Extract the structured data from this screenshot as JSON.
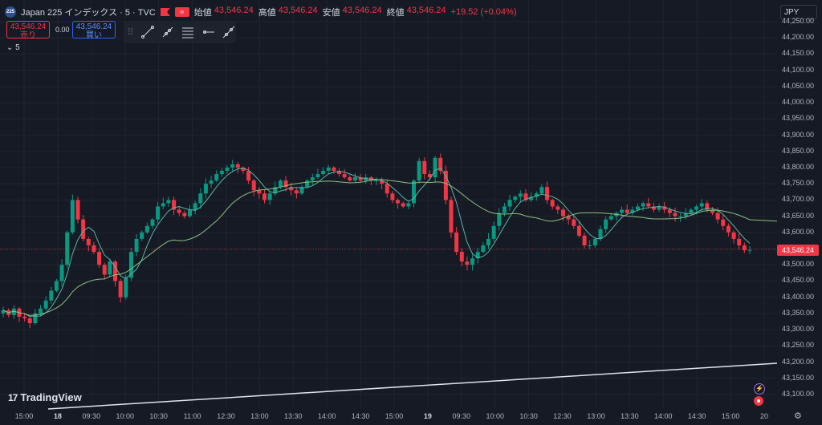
{
  "header": {
    "logo": "225",
    "symbol": "Japan 225 インデックス · 5 · TVC",
    "ohlc": [
      {
        "label": "始値",
        "value": "43,546.24"
      },
      {
        "label": "高値",
        "value": "43,546.24"
      },
      {
        "label": "安値",
        "value": "43,546.24"
      },
      {
        "label": "終値",
        "value": "43,546.24"
      }
    ],
    "change": "+19.52 (+0.04%)"
  },
  "trade": {
    "sell_price": "43,546.24",
    "sell_label": "売り",
    "spread": "0.00",
    "buy_price": "43,546.24",
    "buy_label": "買い"
  },
  "toolbar": {
    "icons": [
      "trend-line-icon",
      "ray-icon",
      "fib-icon",
      "horizontal-ray-icon",
      "extended-line-icon"
    ]
  },
  "indicators": {
    "collapse_label": "5"
  },
  "currency": "JPY",
  "current_price": "43,546.24",
  "brand": {
    "name": "TradingView",
    "mark": "17"
  },
  "colors": {
    "up": "#089981",
    "down": "#f23645",
    "ma_fast": "#5ab3a6",
    "ma_slow": "#8fbf7f",
    "grid": "#1f2430"
  },
  "chart_data": {
    "type": "candlestick",
    "y_ticks": [
      "44,250.00",
      "44,200.00",
      "44,150.00",
      "44,100.00",
      "44,050.00",
      "44,000.00",
      "43,950.00",
      "43,900.00",
      "43,850.00",
      "43,800.00",
      "43,750.00",
      "43,700.00",
      "43,650.00",
      "43,600.00",
      "43,550.00",
      "43,500.00",
      "43,450.00",
      "43,400.00",
      "43,350.00",
      "43,300.00",
      "43,250.00",
      "43,200.00",
      "43,150.00",
      "43,100.00"
    ],
    "x_ticks": [
      {
        "label": "15:00",
        "bold": false
      },
      {
        "label": "18",
        "bold": true
      },
      {
        "label": "09:30",
        "bold": false
      },
      {
        "label": "10:00",
        "bold": false
      },
      {
        "label": "10:30",
        "bold": false
      },
      {
        "label": "11:00",
        "bold": false
      },
      {
        "label": "12:30",
        "bold": false
      },
      {
        "label": "13:00",
        "bold": false
      },
      {
        "label": "13:30",
        "bold": false
      },
      {
        "label": "14:00",
        "bold": false
      },
      {
        "label": "14:30",
        "bold": false
      },
      {
        "label": "15:00",
        "bold": false
      },
      {
        "label": "19",
        "bold": true
      },
      {
        "label": "09:30",
        "bold": false
      },
      {
        "label": "10:00",
        "bold": false
      },
      {
        "label": "10:30",
        "bold": false
      },
      {
        "label": "12:30",
        "bold": false
      },
      {
        "label": "13:00",
        "bold": false
      },
      {
        "label": "13:30",
        "bold": false
      },
      {
        "label": "14:00",
        "bold": false
      },
      {
        "label": "14:30",
        "bold": false
      },
      {
        "label": "15:00",
        "bold": false
      },
      {
        "label": "20",
        "bold": false
      }
    ],
    "ylim": [
      43100,
      44250
    ],
    "closes": [
      43360,
      43345,
      43365,
      43340,
      43335,
      43320,
      43350,
      43365,
      43390,
      43420,
      43450,
      43500,
      43600,
      43700,
      43640,
      43580,
      43560,
      43540,
      43500,
      43470,
      43510,
      43450,
      43400,
      43460,
      43540,
      43580,
      43600,
      43620,
      43640,
      43680,
      43690,
      43700,
      43670,
      43660,
      43650,
      43670,
      43690,
      43720,
      43750,
      43760,
      43780,
      43790,
      43800,
      43810,
      43800,
      43790,
      43760,
      43730,
      43720,
      43700,
      43720,
      43740,
      43760,
      43740,
      43730,
      43720,
      43740,
      43760,
      43770,
      43780,
      43790,
      43800,
      43790,
      43780,
      43770,
      43760,
      43770,
      43760,
      43770,
      43760,
      43760,
      43750,
      43720,
      43700,
      43690,
      43680,
      43690,
      43760,
      43820,
      43780,
      43770,
      43830,
      43790,
      43700,
      43600,
      43540,
      43510,
      43500,
      43520,
      43540,
      43560,
      43580,
      43620,
      43660,
      43680,
      43700,
      43710,
      43720,
      43700,
      43710,
      43720,
      43740,
      43700,
      43680,
      43670,
      43650,
      43640,
      43620,
      43590,
      43560,
      43560,
      43580,
      43610,
      43640,
      43650,
      43660,
      43670,
      43660,
      43670,
      43680,
      43690,
      43680,
      43670,
      43680,
      43670,
      43660,
      43650,
      43650,
      43660,
      43670,
      43680,
      43690,
      43670,
      43660,
      43640,
      43620,
      43600,
      43580,
      43560,
      43545,
      43546
    ]
  }
}
